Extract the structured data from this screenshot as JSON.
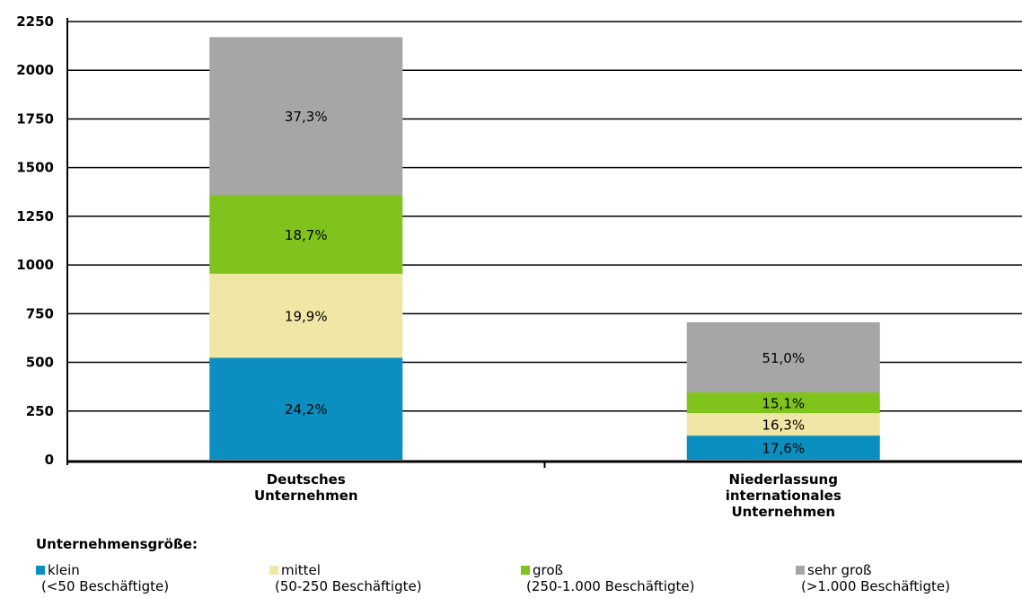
{
  "chart_data": {
    "type": "bar",
    "stacked": true,
    "categories": [
      [
        "Deutsches",
        "Unternehmen"
      ],
      [
        "Niederlassung",
        "internationales",
        "Unternehmen"
      ]
    ],
    "series": [
      {
        "name": "klein",
        "values": [
          524,
          124
        ],
        "labels": [
          "24,2%",
          "17,6%"
        ],
        "color": "#0a8fc0"
      },
      {
        "name": "mittel",
        "values": [
          431,
          115
        ],
        "labels": [
          "19,9%",
          "16,3%"
        ],
        "color": "#f0e6a6"
      },
      {
        "name": "groß",
        "values": [
          405,
          107
        ],
        "labels": [
          "18,7%",
          "15,1%"
        ],
        "color": "#7fc31c"
      },
      {
        "name": "sehr groß",
        "values": [
          810,
          360
        ],
        "labels": [
          "37,3%",
          "51,0%"
        ],
        "color": "#a6a6a6"
      }
    ],
    "ylim": [
      0,
      2250
    ],
    "yticks": [
      "0",
      "250",
      "500",
      "750",
      "1000",
      "1250",
      "1500",
      "1750",
      "2000",
      "2250"
    ],
    "grid": true,
    "legend_position": "bottom"
  },
  "legend": {
    "title": "Unternehmensgröße:",
    "items": [
      {
        "label": "klein",
        "sub": "(<50 Beschäftigte)",
        "color": "#0a8fc0"
      },
      {
        "label": "mittel",
        "sub": "(50-250 Beschäftigte)",
        "color": "#f0e6a6"
      },
      {
        "label": "groß",
        "sub": "(250-1.000 Beschäftigte)",
        "color": "#7fc31c"
      },
      {
        "label": "sehr groß",
        "sub": "(>1.000 Beschäftigte)",
        "color": "#a6a6a6"
      }
    ]
  }
}
